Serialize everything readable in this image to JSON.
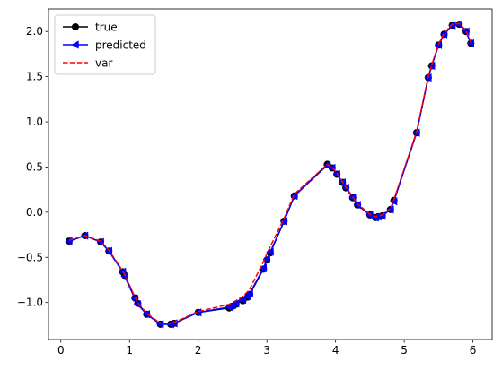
{
  "chart_data": {
    "type": "line",
    "title": "",
    "xlabel": "",
    "ylabel": "",
    "xlim": [
      -0.18,
      6.28
    ],
    "ylim": [
      -1.41,
      2.25
    ],
    "x_ticks": [
      0,
      1,
      2,
      3,
      4,
      5,
      6
    ],
    "y_ticks": [
      -1.0,
      -0.5,
      0.0,
      0.5,
      1.0,
      1.5,
      2.0
    ],
    "x_tick_labels": [
      "0",
      "1",
      "2",
      "3",
      "4",
      "5",
      "6"
    ],
    "y_tick_labels": [
      "−1.0",
      "−0.5",
      "0.0",
      "0.5",
      "1.0",
      "1.5",
      "2.0"
    ],
    "grid": false,
    "legend_position": "top-left",
    "series": [
      {
        "name": "true",
        "color": "#000000",
        "style": "solid",
        "marker": "circle",
        "x": [
          0.12,
          0.35,
          0.58,
          0.7,
          0.9,
          0.93,
          1.08,
          1.12,
          1.25,
          1.45,
          1.6,
          1.65,
          2.0,
          2.45,
          2.5,
          2.55,
          2.65,
          2.72,
          2.75,
          2.95,
          3.0,
          3.05,
          3.25,
          3.4,
          3.88,
          3.95,
          4.02,
          4.1,
          4.15,
          4.25,
          4.32,
          4.5,
          4.58,
          4.62,
          4.68,
          4.8,
          4.85,
          5.18,
          5.35,
          5.4,
          5.5,
          5.58,
          5.7,
          5.8,
          5.9,
          5.97
        ],
        "y": [
          -0.32,
          -0.26,
          -0.33,
          -0.43,
          -0.66,
          -0.7,
          -0.95,
          -1.01,
          -1.13,
          -1.24,
          -1.24,
          -1.23,
          -1.11,
          -1.06,
          -1.04,
          -1.02,
          -0.98,
          -0.94,
          -0.91,
          -0.63,
          -0.53,
          -0.45,
          -0.1,
          0.18,
          0.53,
          0.49,
          0.42,
          0.33,
          0.27,
          0.16,
          0.08,
          -0.03,
          -0.06,
          -0.05,
          -0.04,
          0.03,
          0.13,
          0.88,
          1.49,
          1.62,
          1.85,
          1.97,
          2.07,
          2.08,
          2.0,
          1.87
        ]
      },
      {
        "name": "predicted",
        "color": "#0000ff",
        "style": "solid",
        "marker": "triangle-left",
        "x": [
          0.12,
          0.35,
          0.58,
          0.7,
          0.9,
          0.93,
          1.08,
          1.12,
          1.25,
          1.45,
          1.6,
          1.65,
          2.0,
          2.45,
          2.5,
          2.55,
          2.65,
          2.72,
          2.75,
          2.95,
          3.0,
          3.05,
          3.25,
          3.4,
          3.88,
          3.95,
          4.02,
          4.1,
          4.15,
          4.25,
          4.32,
          4.5,
          4.58,
          4.62,
          4.68,
          4.8,
          4.85,
          5.18,
          5.35,
          5.4,
          5.5,
          5.58,
          5.7,
          5.8,
          5.9,
          5.97
        ],
        "y": [
          -0.32,
          -0.26,
          -0.33,
          -0.43,
          -0.66,
          -0.71,
          -0.96,
          -1.02,
          -1.13,
          -1.24,
          -1.24,
          -1.23,
          -1.11,
          -1.05,
          -1.03,
          -1.01,
          -0.97,
          -0.93,
          -0.9,
          -0.62,
          -0.52,
          -0.44,
          -0.1,
          0.18,
          0.52,
          0.49,
          0.42,
          0.33,
          0.27,
          0.16,
          0.08,
          -0.03,
          -0.06,
          -0.05,
          -0.04,
          0.03,
          0.12,
          0.88,
          1.49,
          1.62,
          1.85,
          1.97,
          2.07,
          2.08,
          2.0,
          1.87
        ]
      },
      {
        "name": "var",
        "color": "#ff0000",
        "style": "dashed",
        "marker": "none",
        "x": [
          0.12,
          0.35,
          0.58,
          0.7,
          0.9,
          0.93,
          1.08,
          1.12,
          1.25,
          1.45,
          1.6,
          1.65,
          2.0,
          2.45,
          2.5,
          2.55,
          2.65,
          2.72,
          2.75,
          2.95,
          3.0,
          3.05,
          3.25,
          3.4,
          3.88,
          3.95,
          4.02,
          4.1,
          4.15,
          4.25,
          4.32,
          4.5,
          4.58,
          4.62,
          4.68,
          4.8,
          4.85,
          5.18,
          5.35,
          5.4,
          5.5,
          5.58,
          5.7,
          5.8,
          5.9,
          5.97
        ],
        "y": [
          -0.31,
          -0.26,
          -0.32,
          -0.42,
          -0.65,
          -0.69,
          -0.94,
          -1.0,
          -1.12,
          -1.23,
          -1.23,
          -1.22,
          -1.1,
          -1.02,
          -1.0,
          -0.98,
          -0.93,
          -0.88,
          -0.85,
          -0.55,
          -0.46,
          -0.38,
          -0.07,
          0.2,
          0.53,
          0.5,
          0.43,
          0.34,
          0.28,
          0.17,
          0.09,
          -0.02,
          -0.05,
          -0.04,
          -0.03,
          0.04,
          0.14,
          0.89,
          1.5,
          1.63,
          1.86,
          1.98,
          2.08,
          2.09,
          2.01,
          1.88
        ]
      }
    ]
  }
}
